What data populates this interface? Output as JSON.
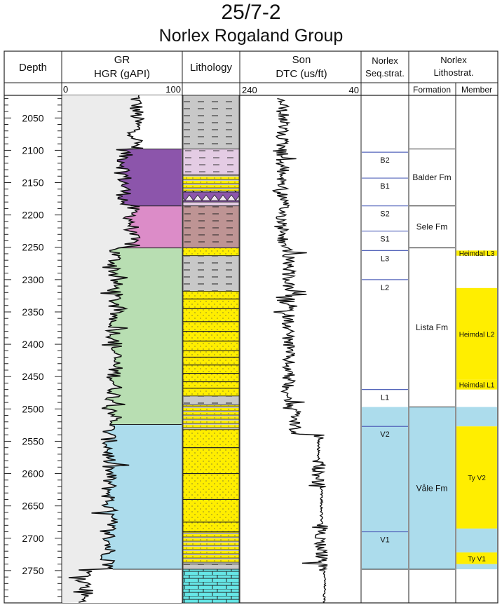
{
  "title": "25/7-2",
  "subtitle": "Norlex Rogaland Group",
  "headers": {
    "depth": "Depth",
    "gr": [
      "GR",
      "HGR (gAPI)"
    ],
    "gr_scale": [
      "0",
      "100"
    ],
    "lithology": "Lithology",
    "son": [
      "Son",
      "DTC (us/ft)"
    ],
    "son_scale": [
      "240",
      "40"
    ],
    "seq": [
      "Norlex",
      "Seq.strat."
    ],
    "litho": [
      "Norlex",
      "Lithostrat."
    ],
    "formation": "Formation",
    "member": "Member"
  },
  "colors": {
    "balder": "#8c55ab",
    "sele": "#dc8cc8",
    "lista": "#b8deb2",
    "vale": "#acdcec",
    "sand": "#ffee00",
    "shale": "#c8c8c8",
    "tuff": "#e4cce4",
    "mud_red": "#be9494",
    "limestone": "#66e6e6",
    "track_bg": "#ececec",
    "seq_line": "#5566bb"
  },
  "chart_data": {
    "type": "well-log",
    "depth_axis": {
      "label": "Depth",
      "range": [
        2015,
        2800
      ],
      "ticks": [
        2050,
        2100,
        2150,
        2200,
        2250,
        2300,
        2350,
        2400,
        2450,
        2500,
        2550,
        2600,
        2650,
        2700,
        2750
      ]
    },
    "gr_track": {
      "label": "HGR (gAPI)",
      "range": [
        0,
        100
      ]
    },
    "son_track": {
      "label": "DTC (us/ft)",
      "range": [
        240,
        40
      ]
    },
    "gr_zones": [
      {
        "name": "Balder",
        "top": 2098,
        "base": 2186,
        "color": "balder"
      },
      {
        "name": "Sele",
        "top": 2186,
        "base": 2251,
        "color": "sele"
      },
      {
        "name": "Lista",
        "top": 2251,
        "base": 2524,
        "color": "lista"
      },
      {
        "name": "Våle",
        "top": 2524,
        "base": 2748,
        "color": "vale"
      }
    ],
    "gr_profile": [
      {
        "top": 2015,
        "base": 2098,
        "gr": 62
      },
      {
        "top": 2098,
        "base": 2186,
        "gr": 52
      },
      {
        "top": 2186,
        "base": 2251,
        "gr": 58
      },
      {
        "top": 2251,
        "base": 2524,
        "gr": 44
      },
      {
        "top": 2524,
        "base": 2748,
        "gr": 39
      },
      {
        "top": 2748,
        "base": 2800,
        "gr": 20
      }
    ],
    "son_profile": [
      {
        "top": 2015,
        "base": 2250,
        "dtc": 170
      },
      {
        "top": 2250,
        "base": 2500,
        "dtc": 160
      },
      {
        "top": 2500,
        "base": 2540,
        "dtc": 150
      },
      {
        "top": 2540,
        "base": 2620,
        "dtc": 110
      },
      {
        "top": 2620,
        "base": 2748,
        "dtc": 105
      },
      {
        "top": 2748,
        "base": 2800,
        "dtc": 100
      }
    ],
    "lithology": [
      {
        "top": 2015,
        "base": 2098,
        "type": "shale"
      },
      {
        "top": 2098,
        "base": 2138,
        "type": "tuff"
      },
      {
        "top": 2138,
        "base": 2163,
        "type": "sand_thin"
      },
      {
        "top": 2163,
        "base": 2180,
        "type": "zigzag"
      },
      {
        "top": 2180,
        "base": 2186,
        "type": "tuff"
      },
      {
        "top": 2186,
        "base": 2251,
        "type": "mud_red"
      },
      {
        "top": 2251,
        "base": 2263,
        "type": "sand"
      },
      {
        "top": 2263,
        "base": 2318,
        "type": "shale"
      },
      {
        "top": 2318,
        "base": 2480,
        "type": "sand"
      },
      {
        "top": 2480,
        "base": 2494,
        "type": "shale"
      },
      {
        "top": 2494,
        "base": 2532,
        "type": "sand_thin"
      },
      {
        "top": 2532,
        "base": 2690,
        "type": "sand"
      },
      {
        "top": 2690,
        "base": 2740,
        "type": "sand_thin"
      },
      {
        "top": 2740,
        "base": 2748,
        "type": "shale"
      },
      {
        "top": 2748,
        "base": 2800,
        "type": "limestone"
      }
    ],
    "seq_strat": [
      {
        "label": "B2",
        "top": 2103
      },
      {
        "label": "B1",
        "top": 2143
      },
      {
        "label": "S2",
        "top": 2186
      },
      {
        "label": "S1",
        "top": 2225
      },
      {
        "label": "L3",
        "top": 2255
      },
      {
        "label": "L2",
        "top": 2300
      },
      {
        "label": "L1",
        "top": 2470
      },
      {
        "label": "V2",
        "top": 2527
      },
      {
        "label": "V1",
        "top": 2690
      }
    ],
    "seq_vale_shading": [
      2497,
      2748
    ],
    "formations": [
      {
        "name": "Balder Fm",
        "top": 2098,
        "base": 2186
      },
      {
        "name": "Sele Fm",
        "top": 2186,
        "base": 2251
      },
      {
        "name": "Lista Fm",
        "top": 2251,
        "base": 2497
      },
      {
        "name": "Våle Fm",
        "top": 2497,
        "base": 2748,
        "shaded": true
      }
    ],
    "members": [
      {
        "name": "Heimdal L3",
        "top": 2255,
        "base": 2263,
        "color": "sand"
      },
      {
        "name": "Heimdal L2",
        "top": 2313,
        "base": 2455,
        "color": "sand"
      },
      {
        "name": "Heimdal L1",
        "top": 2455,
        "base": 2470,
        "color": "sand"
      },
      {
        "name": "",
        "top": 2497,
        "base": 2527,
        "color": "vale"
      },
      {
        "name": "Ty  V2",
        "top": 2527,
        "base": 2685,
        "color": "sand"
      },
      {
        "name": "",
        "top": 2685,
        "base": 2722,
        "color": "vale"
      },
      {
        "name": "Ty V1",
        "top": 2722,
        "base": 2740,
        "color": "sand"
      },
      {
        "name": "",
        "top": 2740,
        "base": 2748,
        "color": "vale"
      }
    ]
  }
}
